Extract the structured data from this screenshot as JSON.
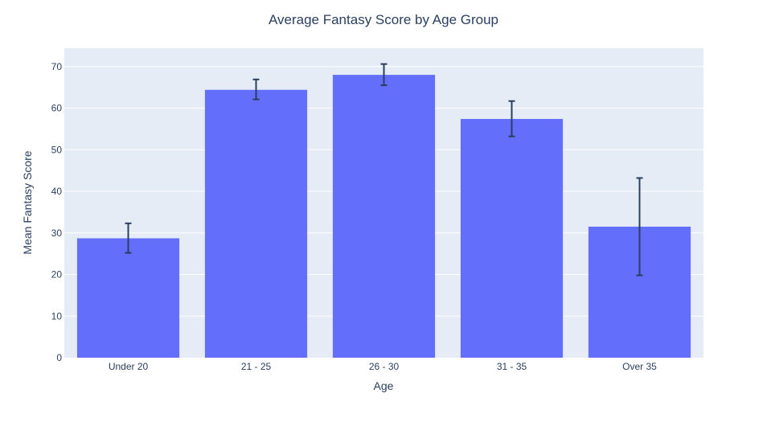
{
  "chart_data": {
    "type": "bar",
    "title": "Average Fantasy Score by Age Group",
    "xlabel": "Age",
    "ylabel": "Mean Fantasy Score",
    "categories": [
      "Under 20",
      "21 - 25",
      "26 - 30",
      "31 - 35",
      "Over 35"
    ],
    "values": [
      28.7,
      64.4,
      68.0,
      57.4,
      31.5
    ],
    "error_low": [
      25.2,
      62.1,
      65.5,
      53.2,
      19.8
    ],
    "error_high": [
      32.3,
      66.9,
      70.6,
      61.7,
      43.2
    ],
    "ylim": [
      0,
      74.4
    ],
    "yticks": [
      0,
      10,
      20,
      30,
      40,
      50,
      60,
      70
    ],
    "grid": true,
    "colors": {
      "bar": "#636efa",
      "plot_bg": "#e5ecf6",
      "gridline": "#ffffff",
      "error_bar": "#2a3f5f",
      "text": "#2a3f5f"
    }
  }
}
